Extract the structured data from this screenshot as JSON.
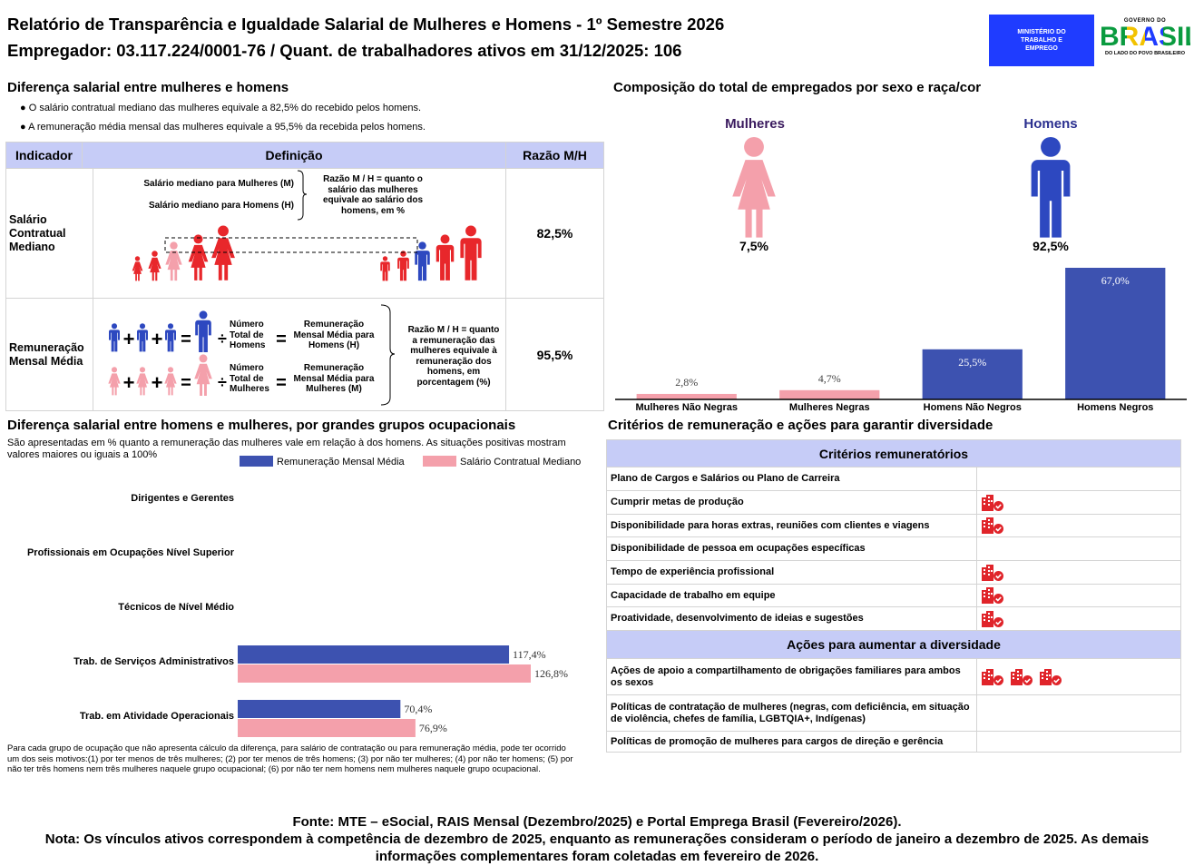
{
  "header": {
    "title": "Relatório de Transparência e Igualdade Salarial de Mulheres e Homens - 1º Semestre 2026",
    "subtitle": "Empregador: 03.117.224/0001-76 / Quant. de trabalhadores ativos em 31/12/2025: 106",
    "logo_mte": "MINISTÉRIO DO TRABALHO E EMPREGO",
    "logo_gov_top": "GOVERNO DO",
    "logo_gov_main": "BRASIL",
    "logo_gov_bottom": "DO LADO DO POVO BRASILEIRO"
  },
  "pay_gap": {
    "title": "Diferença salarial entre mulheres e homens",
    "bullets": [
      "O salário contratual mediano das mulheres equivale a 82,5% do recebido pelos homens.",
      "A remuneração média mensal das mulheres equivale a 95,5% da recebida pelos homens."
    ],
    "table": {
      "headers": [
        "Indicador",
        "Definição",
        "Razão M/H"
      ],
      "rows": [
        {
          "indicator": "Salário Contratual Mediano",
          "ratio": "82,5%"
        },
        {
          "indicator": "Remuneração Mensal Média",
          "ratio": "95,5%"
        }
      ]
    },
    "median_diagram": {
      "women": "Salário mediano para Mulheres (M)",
      "men": "Salário mediano para Homens (H)",
      "ratio_note": "Razão M / H = quanto o salário das mulheres equivale ao salário dos homens, em %"
    },
    "mean_diagram": {
      "plus": "+",
      "equals": "=",
      "divide": "÷",
      "men_count": "Número Total de Homens",
      "men_result": "Remuneração Mensal Média para Homens (H)",
      "women_count": "Número Total de Mulheres",
      "women_result": "Remuneração Mensal Média para Mulheres (M)",
      "ratio_note": "Razão M / H = quanto a remuneração das mulheres equivale à remuneração dos homens, em porcentagem (%)"
    }
  },
  "composition": {
    "women_label": "Mulheres",
    "women_share": "7,5%",
    "men_label": "Homens",
    "men_share": "92,5%"
  },
  "chart_data": [
    {
      "type": "bar",
      "title": "Composição do total de empregados por sexo e raça/cor",
      "categories": [
        "Mulheres Não Negras",
        "Mulheres Negras",
        "Homens Não Negros",
        "Homens Negros"
      ],
      "values": [
        2.8,
        4.7,
        25.5,
        67.0
      ],
      "value_labels": [
        "2,8%",
        "4,7%",
        "25,5%",
        "67,0%"
      ],
      "colors": [
        "#f4a0ab",
        "#f4a0ab",
        "#3d52b0",
        "#3d52b0"
      ]
    },
    {
      "type": "hbar",
      "title": "Diferença salarial entre homens e mulheres, por grandes grupos ocupacionais",
      "subtitle": "São apresentadas em % quanto a remuneração das mulheres vale em relação à dos homens. As situações positivas mostram valores maiores ou iguais a 100%",
      "categories": [
        "Dirigentes e Gerentes",
        "Profissionais em Ocupações Nível Superior",
        "Técnicos de Nível Médio",
        "Trab. de Serviços Administrativos",
        "Trab. em Atividade Operacionais"
      ],
      "series": [
        {
          "name": "Remuneração Mensal Média",
          "color": "#3d52b0",
          "values": [
            null,
            null,
            null,
            117.4,
            70.4
          ],
          "value_labels": [
            null,
            null,
            null,
            "117,4%",
            "70,4%"
          ]
        },
        {
          "name": "Salário Contratual Mediano",
          "color": "#f4a0ab",
          "values": [
            null,
            null,
            null,
            126.8,
            76.9
          ],
          "value_labels": [
            null,
            null,
            null,
            "126,8%",
            "76,9%"
          ]
        }
      ],
      "legend": "top",
      "note": "Para cada grupo de ocupação que não apresenta cálculo da diferença, para salário de contratação ou para remuneração média, pode ter ocorrido um dos seis motivos:(1) por ter menos de três mulheres; (2) por ter menos de três homens; (3) por não ter mulheres; (4) por não ter homens; (5) por não ter três homens nem três mulheres naquele grupo ocupacional; (6) por não ter nem homens nem mulheres naquele grupo ocupacional."
    }
  ],
  "criteria": {
    "title": "Critérios de remuneração e ações para garantir diversidade",
    "criteria_header": "Critérios remuneratórios",
    "criteria": [
      "Plano de Cargos e Salários ou Plano de Carreira",
      "Cumprir metas de produção",
      "Disponibilidade para horas extras, reuniões com clientes e viagens",
      "Disponibilidade de pessoa em ocupações específicas",
      "Tempo de experiência profissional",
      "Capacidade de trabalho em equipe",
      "Proatividade, desenvolvimento de ideias e sugestões"
    ],
    "actions_header": "Ações para aumentar a diversidade",
    "actions": [
      "Ações de apoio a compartilhamento de obrigações familiares para ambos os sexos",
      "Políticas de contratação de mulheres (negras, com deficiência, em situação de violência, chefes de família, LGBTQIA+, Indígenas)",
      "Políticas de promoção de mulheres para cargos de direção e gerência"
    ]
  },
  "footer": {
    "source": "Fonte: MTE – eSocial, RAIS Mensal (Dezembro/2025) e Portal Emprega Brasil (Fevereiro/2026).",
    "note": "Nota: Os vínculos ativos correspondem à competência de dezembro de 2025, enquanto as remunerações consideram o período de janeiro a dezembro de 2025. As demais informações complementares foram coletadas em fevereiro de 2026."
  }
}
